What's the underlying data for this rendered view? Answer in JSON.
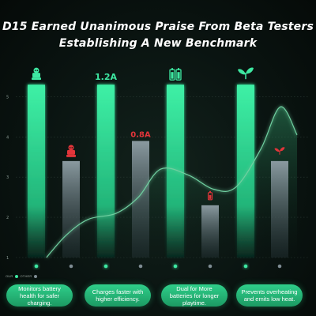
{
  "title": {
    "line1": "D15 Earned Unanimous Praise From Beta Testers",
    "line2": "Establishing A New Benchmark"
  },
  "legend": {
    "ours": "OUR",
    "other": "OTHER"
  },
  "colors": {
    "ours_bar": "#3ee8a2",
    "other_bar": "#7e8c93",
    "accent_red": "#e2353a",
    "curve_stroke": "#6fcfa0",
    "pill": "#22b574"
  },
  "chart_data": {
    "type": "bar",
    "title": "D15 Earned Unanimous Praise From Beta Testers Establishing A New Benchmark",
    "ylim": [
      1,
      5.5
    ],
    "yticks": [
      1,
      2,
      3,
      4,
      5
    ],
    "series": [
      {
        "name": "OUR",
        "values": [
          5.3,
          5.3,
          5.3,
          5.3
        ]
      },
      {
        "name": "OTHER",
        "values": [
          3.4,
          3.9,
          2.3,
          3.4
        ]
      }
    ],
    "categories": [
      "Monitors battery health for safer charging.",
      "Charges faster with higher efficiency.",
      "Dual for More batteries for longer playtime.",
      "Prevents overheating and emits low heat."
    ],
    "data_labels": {
      "ours": [
        "",
        "1.2A",
        "",
        ""
      ],
      "other": [
        "",
        "0.8A",
        "",
        ""
      ]
    },
    "icons": {
      "ours": [
        "robot-icon",
        "",
        "battery-pair-icon",
        "leaf-icon"
      ],
      "other": [
        "robot-icon",
        "",
        "battery-icon",
        "leaf-icon"
      ]
    },
    "trend": [
      [
        0.55,
        1.0
      ],
      [
        0.9,
        1.55
      ],
      [
        1.3,
        1.95
      ],
      [
        1.8,
        2.1
      ],
      [
        2.2,
        2.5
      ],
      [
        2.6,
        3.2
      ],
      [
        3.1,
        3.05
      ],
      [
        3.55,
        2.7
      ],
      [
        3.95,
        2.75
      ],
      [
        4.4,
        3.7
      ],
      [
        4.75,
        4.75
      ],
      [
        5.05,
        4.05
      ]
    ]
  },
  "pills": [
    "Monitors battery health for safer charging.",
    "Charges faster with higher efficiency.",
    "Dual for More batteries for longer playtime.",
    "Prevents overheating and emits low heat."
  ]
}
